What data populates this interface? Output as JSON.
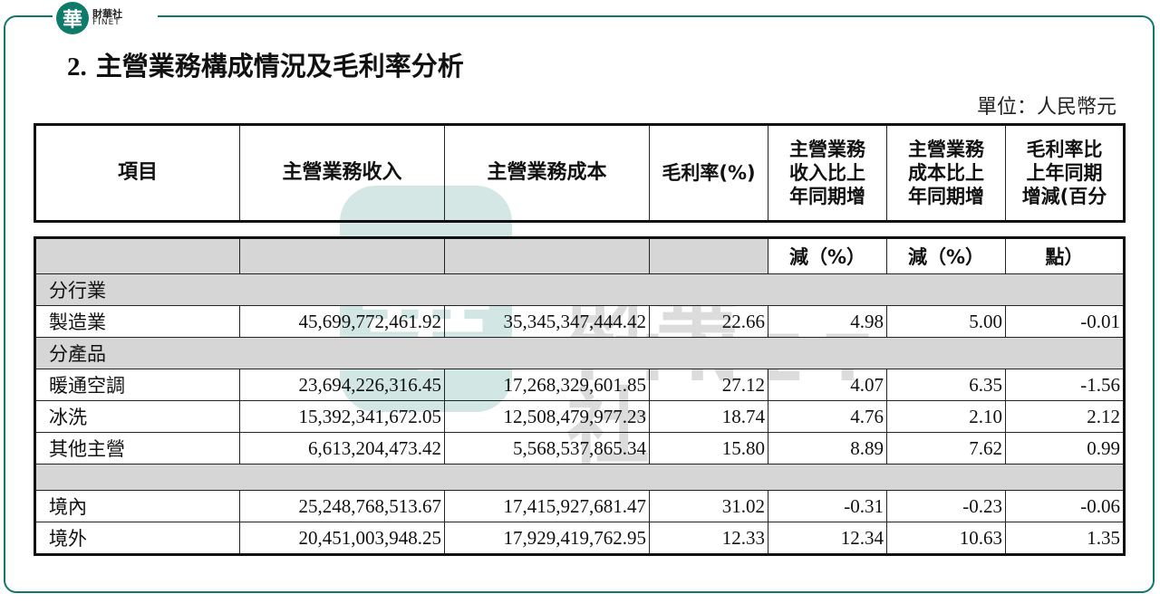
{
  "brand": {
    "logo_glyph": "華",
    "name_cn": "財華社",
    "name_en": "FINET",
    "color": "#0e7a6a"
  },
  "heading": {
    "number": "2.",
    "title": "主營業務構成情況及毛利率分析"
  },
  "unit": "單位：人民幣元",
  "table_header": {
    "item": "項目",
    "revenue": "主營業務收入",
    "cost": "主營業務成本",
    "margin": "毛利率(%)",
    "rev_change": "主營業務\n收入比上\n年同期增",
    "cost_change": "主營業務\n成本比上\n年同期增",
    "margin_change": "毛利率比\n上年同期\n增減(百分"
  },
  "table_header_cont": {
    "rev_change": "減（%）",
    "cost_change": "減（%）",
    "margin_change": "點）"
  },
  "sections": {
    "by_industry": "分行業",
    "by_product": "分產品"
  },
  "rows": {
    "manufacturing": [
      "製造業",
      "45,699,772,461.92",
      "35,345,347,444.42",
      "22.66",
      "4.98",
      "5.00",
      "-0.01"
    ],
    "hvac": [
      "暖通空調",
      "23,694,226,316.45",
      "17,268,329,601.85",
      "27.12",
      "4.07",
      "6.35",
      "-1.56"
    ],
    "washing": [
      "冰洗",
      "15,392,341,672.05",
      "12,508,479,977.23",
      "18.74",
      "4.76",
      "2.10",
      "2.12"
    ],
    "other": [
      "其他主營",
      "6,613,204,473.42",
      "5,568,537,865.34",
      "15.80",
      "8.89",
      "7.62",
      "0.99"
    ],
    "domestic": [
      "境內",
      "25,248,768,513.67",
      "17,415,927,681.47",
      "31.02",
      "-0.31",
      "-0.23",
      "-0.06"
    ],
    "overseas": [
      "境外",
      "20,451,003,948.25",
      "17,929,419,762.95",
      "12.33",
      "12.34",
      "10.63",
      "1.35"
    ]
  }
}
